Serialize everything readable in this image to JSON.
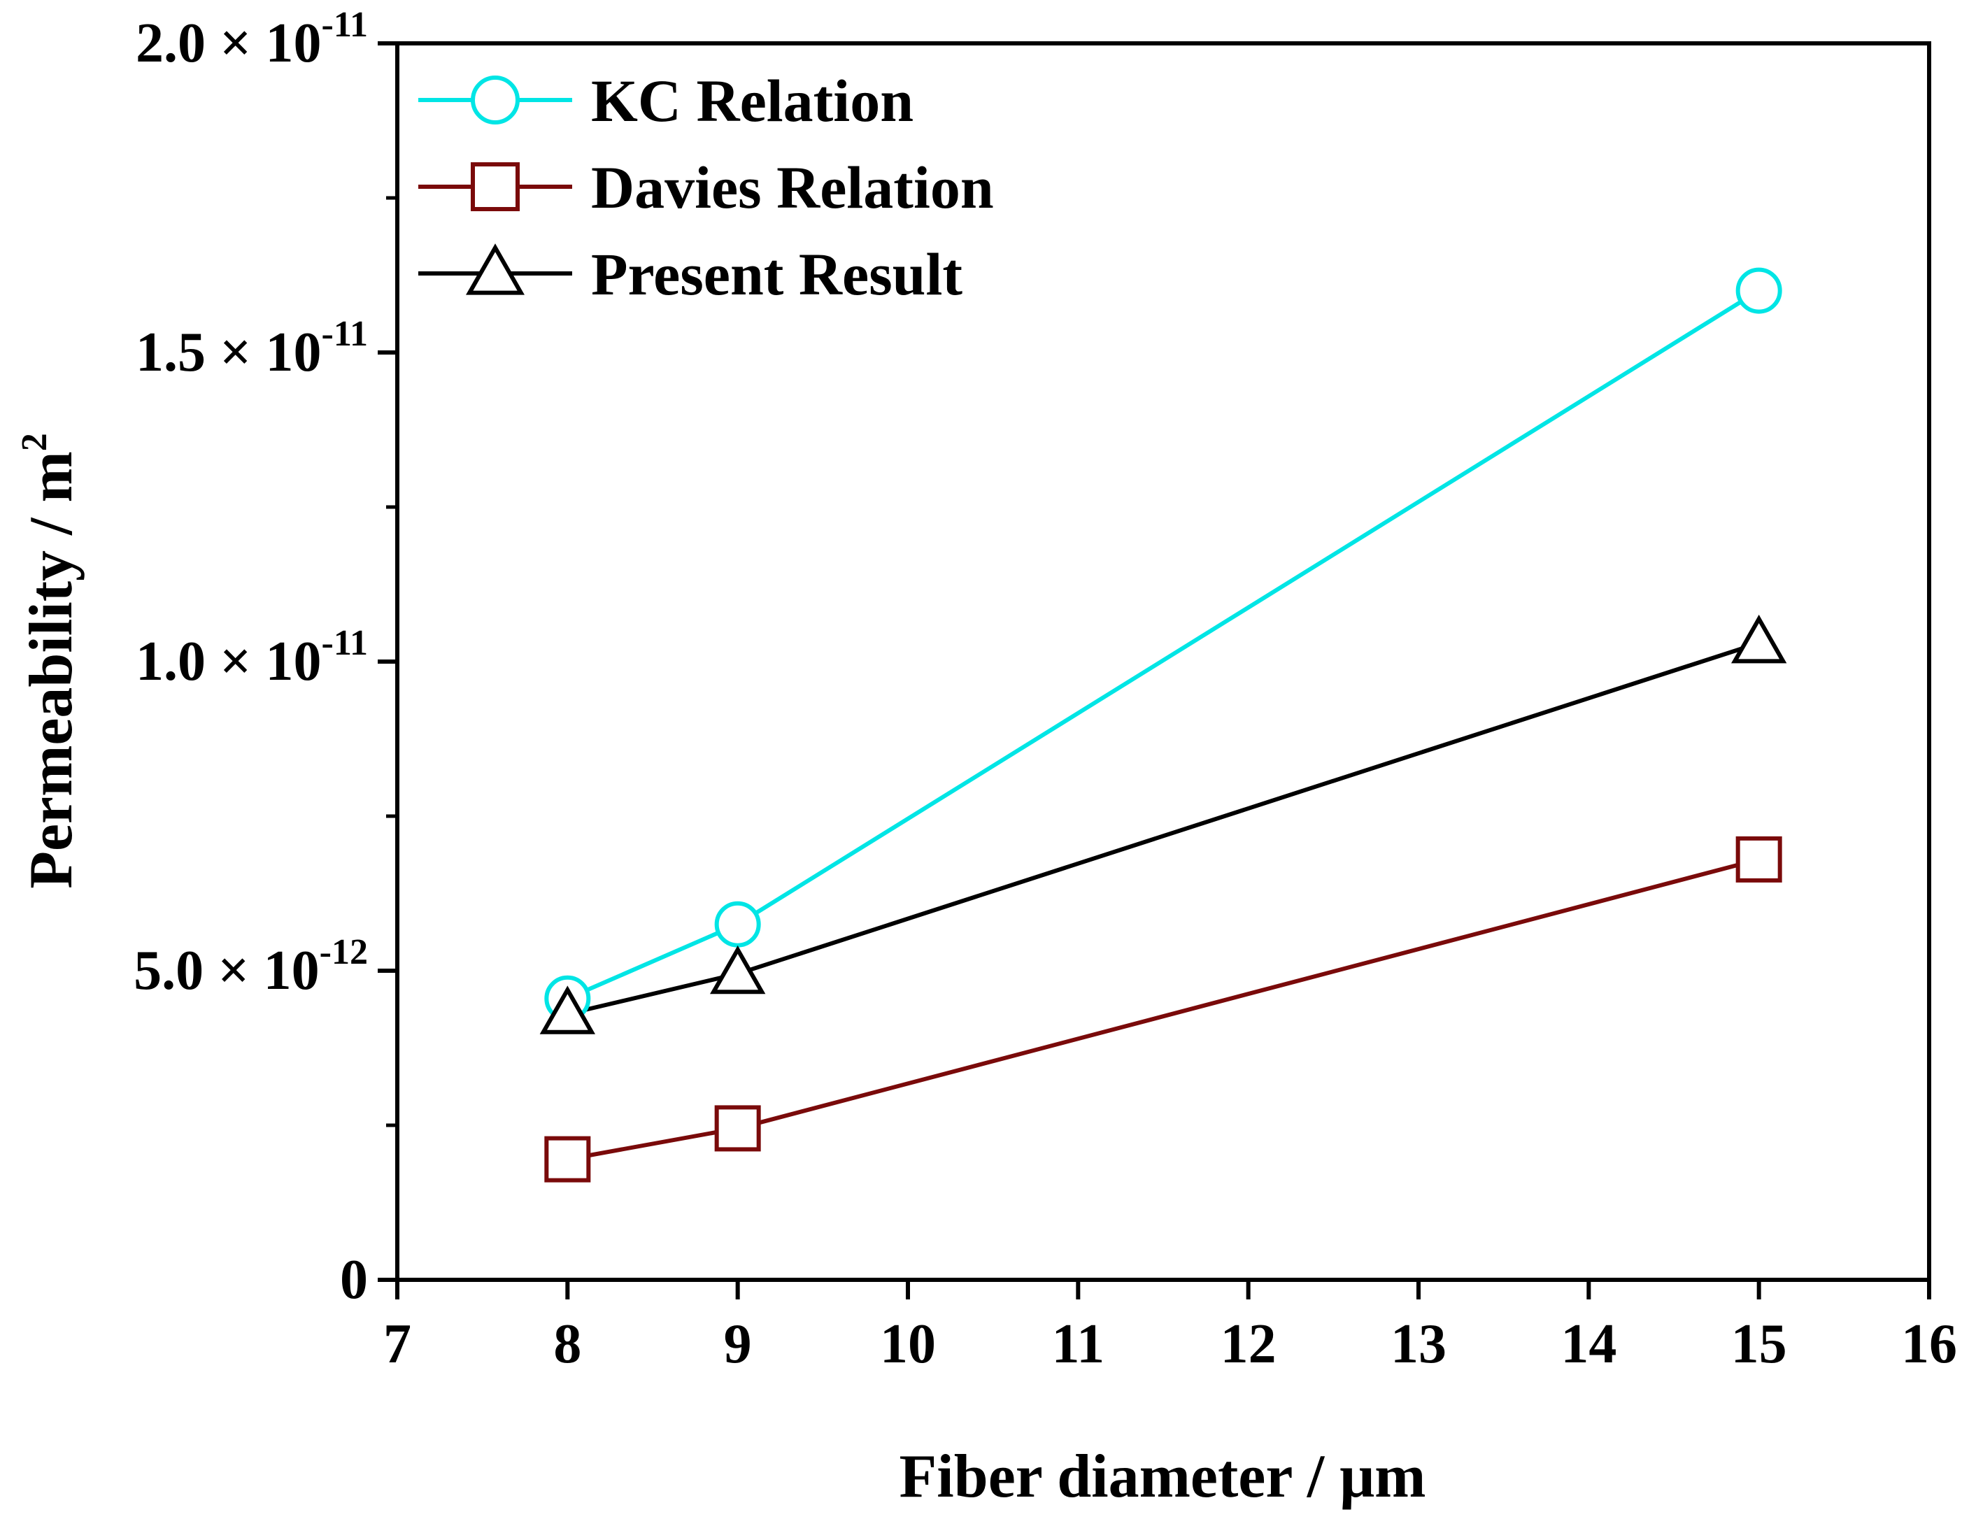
{
  "chart_data": {
    "type": "line",
    "title": "",
    "xlabel": "Fiber diameter / μm",
    "ylabel": "Permeability / m",
    "ylabel_sup": "2",
    "xlim": [
      7,
      16
    ],
    "ylim": [
      0,
      2e-11
    ],
    "x_ticks": [
      7,
      8,
      9,
      10,
      11,
      12,
      13,
      14,
      15,
      16
    ],
    "x_tick_labels": [
      "7",
      "8",
      "9",
      "10",
      "11",
      "12",
      "13",
      "14",
      "15",
      "16"
    ],
    "y_ticks": [
      {
        "value": 0,
        "label": "0",
        "exp": ""
      },
      {
        "value": 5e-12,
        "label": "5.0 × 10",
        "exp": "-12"
      },
      {
        "value": 1e-11,
        "label": "1.0 × 10",
        "exp": "-11"
      },
      {
        "value": 1.5e-11,
        "label": "1.5 × 10",
        "exp": "-11"
      },
      {
        "value": 2e-11,
        "label": "2.0 × 10",
        "exp": "-11"
      }
    ],
    "y_minor_ticks": [
      2.5e-12,
      7.5e-12,
      1.25e-11,
      1.75e-11
    ],
    "grid": false,
    "legend_position": "top-left",
    "series": [
      {
        "name": "KC Relation",
        "color": "#00e5e5",
        "marker": "circle",
        "x": [
          8,
          9,
          15
        ],
        "values": [
          4.55e-12,
          5.75e-12,
          1.6e-11
        ]
      },
      {
        "name": "Davies Relation",
        "color": "#7a0a0a",
        "marker": "square",
        "x": [
          8,
          9,
          15
        ],
        "values": [
          1.95e-12,
          2.45e-12,
          6.8e-12
        ]
      },
      {
        "name": "Present Result",
        "color": "#000000",
        "marker": "triangle",
        "x": [
          8,
          9,
          15
        ],
        "values": [
          4.3e-12,
          4.95e-12,
          1.03e-11
        ]
      }
    ]
  }
}
